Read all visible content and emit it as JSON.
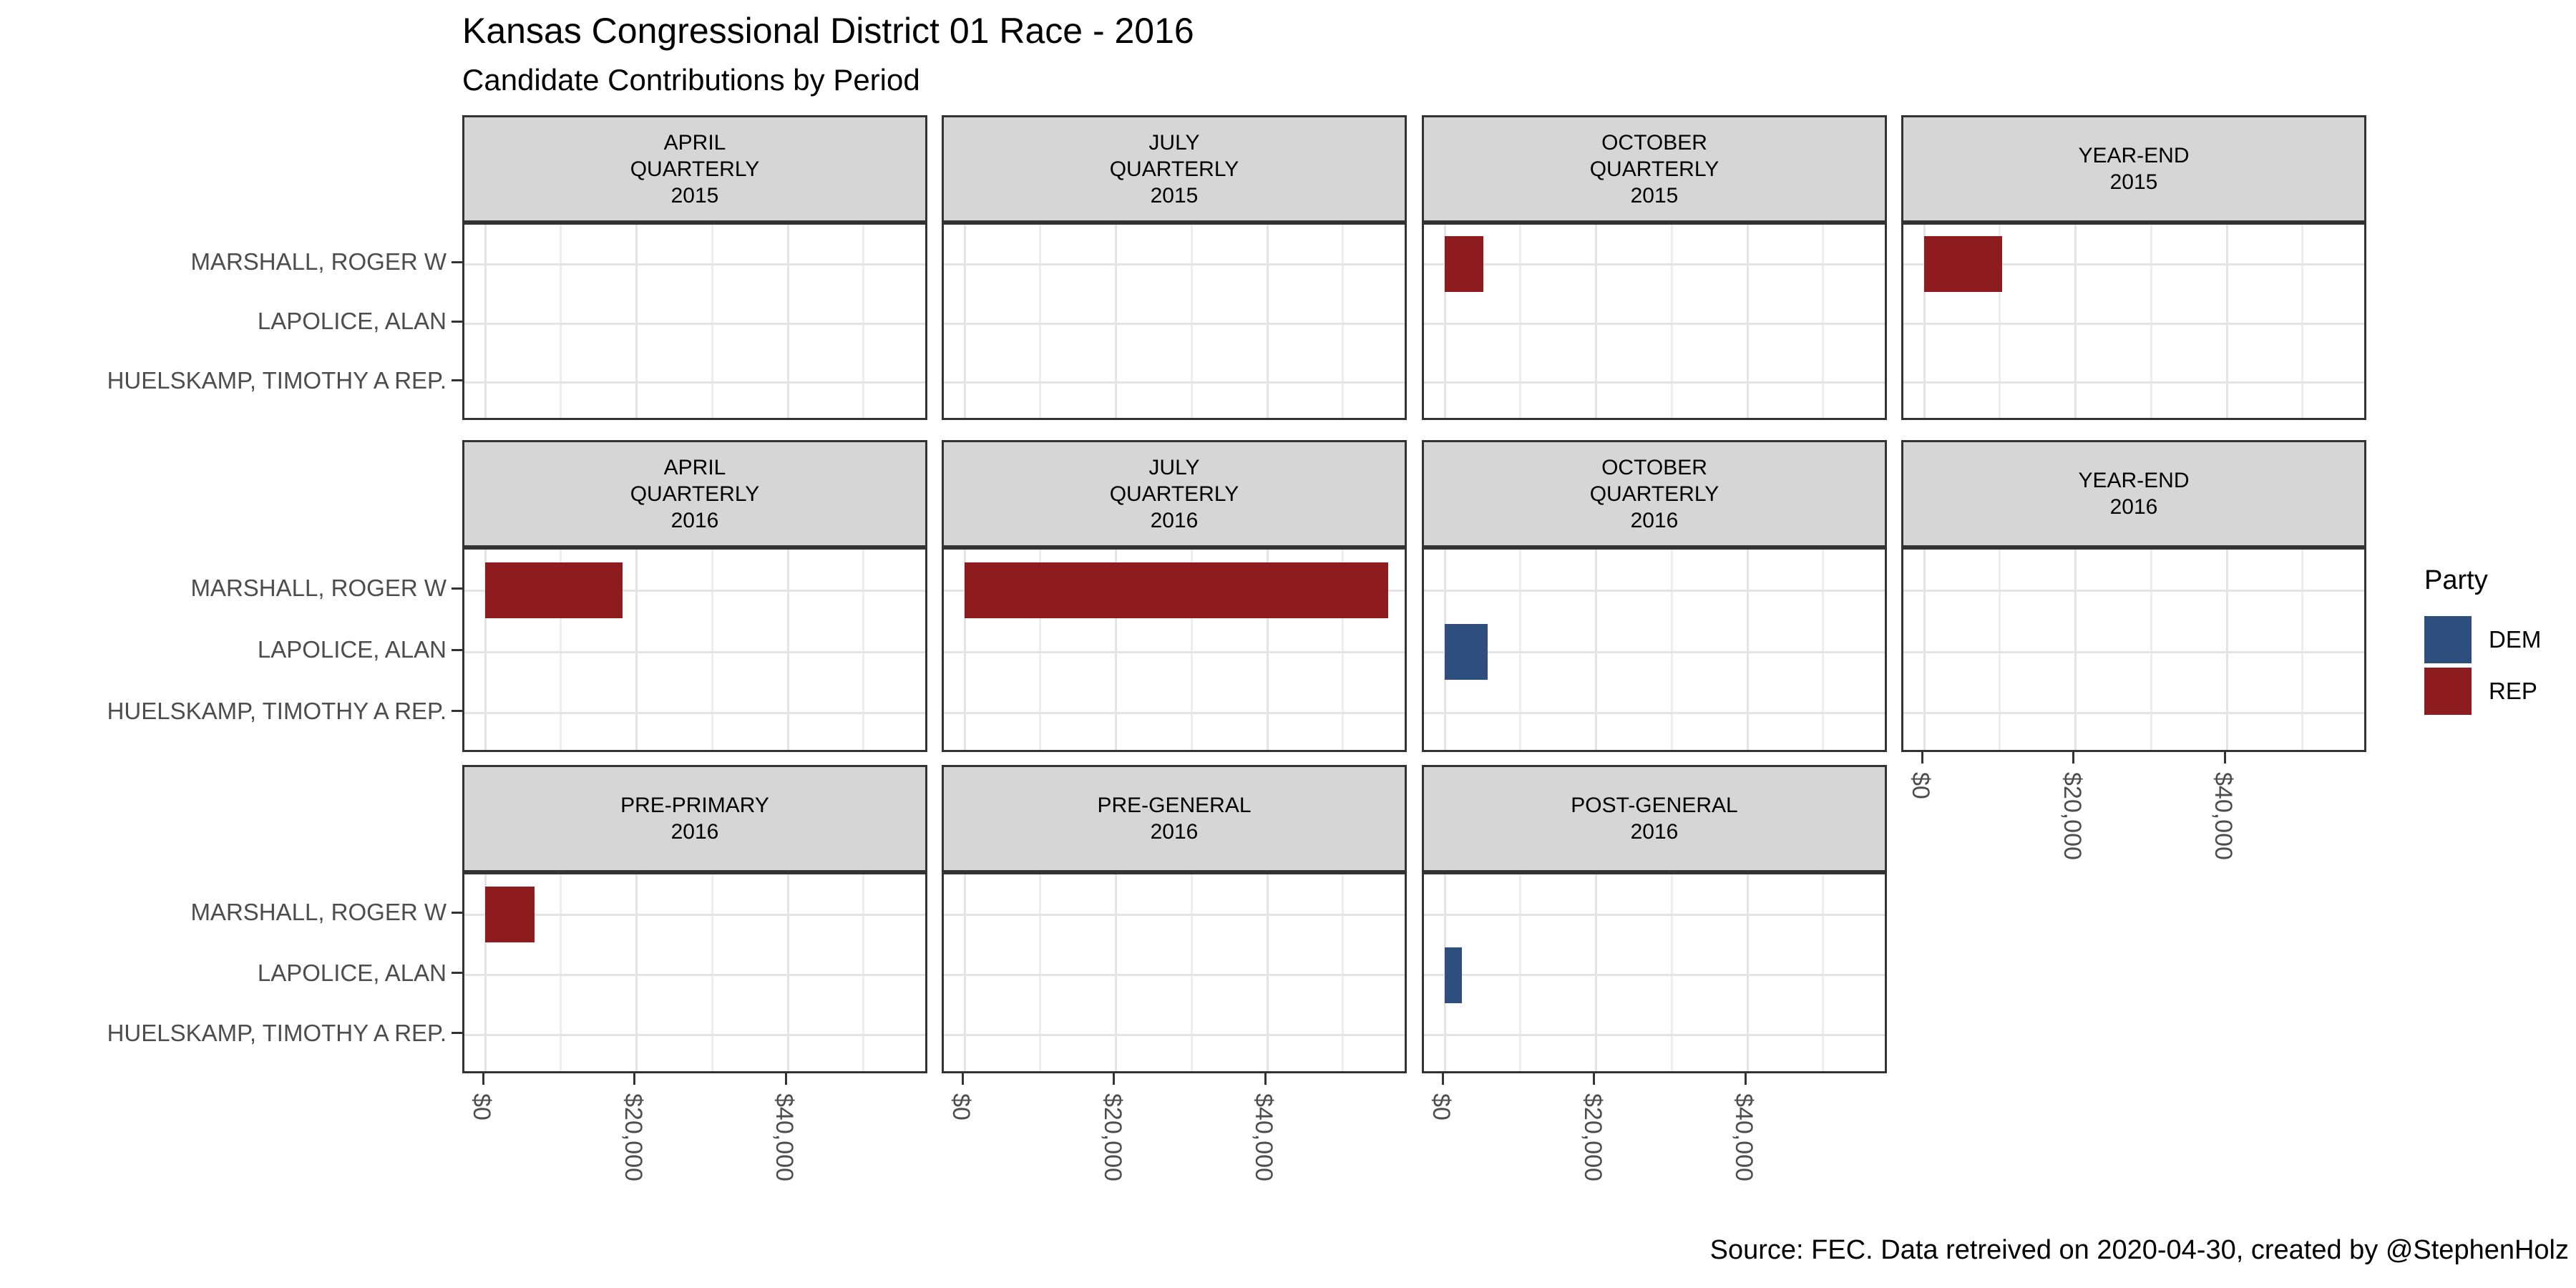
{
  "title": "Kansas Congressional District 01 Race - 2016",
  "subtitle": "Candidate Contributions by Period",
  "caption": "Source: FEC. Data retreived on 2020-04-30, created by @StephenHolz",
  "legend": {
    "title": "Party",
    "items": [
      {
        "label": "DEM",
        "color": "#2E4E7E"
      },
      {
        "label": "REP",
        "color": "#8E1C1E"
      }
    ]
  },
  "colors": {
    "rep": "#8E1C1E",
    "dem": "#2E4E7E",
    "strip_background": "#D6D6D6",
    "panel_border": "#333333",
    "grid_major": "#E4E4E4",
    "grid_minor": "#EEEEEE",
    "axis_text": "#4D4D4D",
    "tick_mark": "#333333"
  },
  "chart_data": {
    "type": "bar",
    "orientation": "horizontal",
    "title": "Kansas Congressional District 01 Race - 2016",
    "subtitle": "Candidate Contributions by Period",
    "xlabel": "",
    "ylabel": "",
    "categories": [
      "MARSHALL, ROGER W",
      "LAPOLICE, ALAN",
      "HUELSKAMP, TIMOTHY A REP."
    ],
    "x_tick_labels": [
      "$0",
      "$20,000",
      "$40,000"
    ],
    "x_tick_values": [
      0,
      20000,
      40000
    ],
    "x_minor_gridlines": [
      10000,
      30000,
      50000
    ],
    "xlim": [
      0,
      58800
    ],
    "grid": "on",
    "legend_position": "right",
    "facets": [
      {
        "row": 0,
        "col": 0,
        "label_lines": [
          "APRIL",
          "QUARTERLY",
          "2015"
        ],
        "bars": []
      },
      {
        "row": 0,
        "col": 1,
        "label_lines": [
          "JULY",
          "QUARTERLY",
          "2015"
        ],
        "bars": []
      },
      {
        "row": 0,
        "col": 2,
        "label_lines": [
          "OCTOBER",
          "QUARTERLY",
          "2015"
        ],
        "bars": [
          {
            "candidate": "MARSHALL, ROGER W",
            "candidate_index": 0,
            "party": "REP",
            "value": 5100
          }
        ]
      },
      {
        "row": 0,
        "col": 3,
        "label_lines": [
          "YEAR-END",
          "2015"
        ],
        "bars": [
          {
            "candidate": "MARSHALL, ROGER W",
            "candidate_index": 0,
            "party": "REP",
            "value": 10300
          }
        ]
      },
      {
        "row": 1,
        "col": 0,
        "label_lines": [
          "APRIL",
          "QUARTERLY",
          "2016"
        ],
        "bars": [
          {
            "candidate": "MARSHALL, ROGER W",
            "candidate_index": 0,
            "party": "REP",
            "value": 18200
          }
        ]
      },
      {
        "row": 1,
        "col": 1,
        "label_lines": [
          "JULY",
          "QUARTERLY",
          "2016"
        ],
        "bars": [
          {
            "candidate": "MARSHALL, ROGER W",
            "candidate_index": 0,
            "party": "REP",
            "value": 56000
          }
        ]
      },
      {
        "row": 1,
        "col": 2,
        "label_lines": [
          "OCTOBER",
          "QUARTERLY",
          "2016"
        ],
        "bars": [
          {
            "candidate": "LAPOLICE, ALAN",
            "candidate_index": 1,
            "party": "DEM",
            "value": 5700
          }
        ]
      },
      {
        "row": 1,
        "col": 3,
        "label_lines": [
          "YEAR-END",
          "2016"
        ],
        "bars": []
      },
      {
        "row": 2,
        "col": 0,
        "label_lines": [
          "PRE-PRIMARY",
          "2016"
        ],
        "bars": [
          {
            "candidate": "MARSHALL, ROGER W",
            "candidate_index": 0,
            "party": "REP",
            "value": 6500
          }
        ]
      },
      {
        "row": 2,
        "col": 1,
        "label_lines": [
          "PRE-GENERAL",
          "2016"
        ],
        "bars": []
      },
      {
        "row": 2,
        "col": 2,
        "label_lines": [
          "POST-GENERAL",
          "2016"
        ],
        "bars": [
          {
            "candidate": "LAPOLICE, ALAN",
            "candidate_index": 1,
            "party": "DEM",
            "value": 2300
          }
        ]
      }
    ]
  }
}
